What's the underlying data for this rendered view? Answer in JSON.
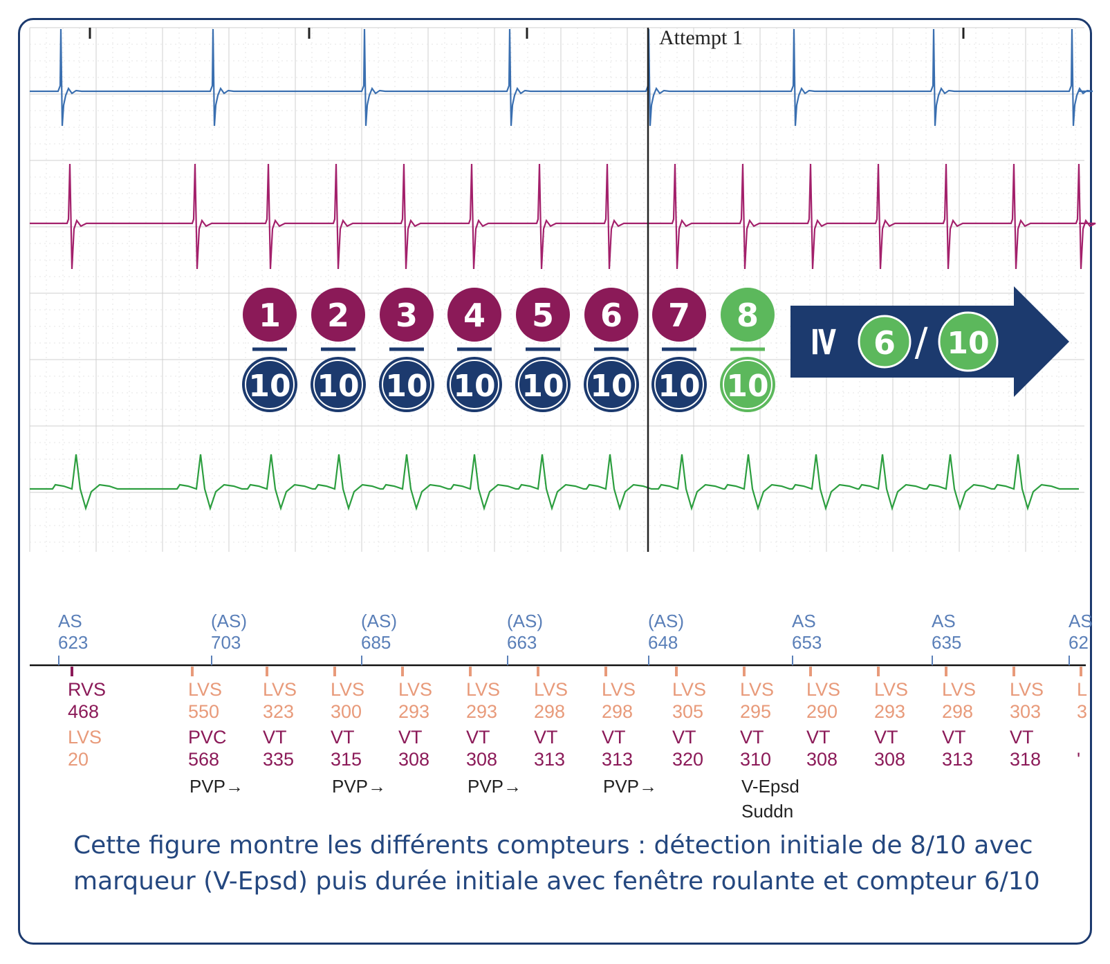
{
  "attempt_label": "Attempt 1",
  "counters": {
    "numerators": [
      "1",
      "2",
      "3",
      "4",
      "5",
      "6",
      "7",
      "8"
    ],
    "denominator": "10",
    "arrow_symbol": "≥",
    "arrow_numerator": "6",
    "arrow_separator": "/",
    "arrow_denominator": "10"
  },
  "atrial_markers": [
    {
      "label": "AS",
      "value": "623"
    },
    {
      "label": "(AS)",
      "value": "703"
    },
    {
      "label": "(AS)",
      "value": "685"
    },
    {
      "label": "(AS)",
      "value": "663"
    },
    {
      "label": "(AS)",
      "value": "648"
    },
    {
      "label": "AS",
      "value": "653"
    },
    {
      "label": "AS",
      "value": "635"
    },
    {
      "label": "AS",
      "value": "62"
    }
  ],
  "ventricular_markers": [
    {
      "l1": "RVS",
      "v1": "468",
      "l2": "LVS",
      "v2": "20",
      "extra": []
    },
    {
      "l1": "LVS",
      "v1": "550",
      "l2": "PVC",
      "v2": "568",
      "extra": [
        "PVP→"
      ]
    },
    {
      "l1": "LVS",
      "v1": "323",
      "l2": "VT",
      "v2": "335",
      "extra": []
    },
    {
      "l1": "LVS",
      "v1": "300",
      "l2": "VT",
      "v2": "315",
      "extra": [
        "PVP→"
      ]
    },
    {
      "l1": "LVS",
      "v1": "293",
      "l2": "VT",
      "v2": "308",
      "extra": []
    },
    {
      "l1": "LVS",
      "v1": "293",
      "l2": "VT",
      "v2": "308",
      "extra": [
        "PVP→"
      ]
    },
    {
      "l1": "LVS",
      "v1": "298",
      "l2": "VT",
      "v2": "313",
      "extra": []
    },
    {
      "l1": "LVS",
      "v1": "298",
      "l2": "VT",
      "v2": "313",
      "extra": [
        "PVP→"
      ]
    },
    {
      "l1": "LVS",
      "v1": "305",
      "l2": "VT",
      "v2": "320",
      "extra": []
    },
    {
      "l1": "LVS",
      "v1": "295",
      "l2": "VT",
      "v2": "310",
      "extra": [
        "V-Epsd",
        "Suddn"
      ]
    },
    {
      "l1": "LVS",
      "v1": "290",
      "l2": "VT",
      "v2": "308",
      "extra": []
    },
    {
      "l1": "LVS",
      "v1": "293",
      "l2": "VT",
      "v2": "308",
      "extra": []
    },
    {
      "l1": "LVS",
      "v1": "298",
      "l2": "VT",
      "v2": "313",
      "extra": []
    },
    {
      "l1": "LVS",
      "v1": "303",
      "l2": "VT",
      "v2": "318",
      "extra": []
    },
    {
      "l1": "L",
      "v1": "3",
      "l2": "",
      "v2": "'",
      "extra": []
    }
  ],
  "caption": "Cette figure montre les différents compteurs : détection initiale de 8/10 avec marqueur (V-Epsd) puis durée initiale avec fenêtre roulante et compteur 6/10",
  "colors": {
    "frame": "#1c3a6e",
    "trace_atrial": "#3a6fb0",
    "trace_rv": "#a3206b",
    "trace_ecg": "#2c9e3f",
    "counter_purple": "#8b1a58",
    "counter_navy": "#1c3a6e",
    "counter_green": "#5cb85c",
    "atrial_marker_text": "#5a7fb8",
    "marker_rvs": "#8b1a58",
    "marker_lvs": "#e89a7a",
    "marker_vt": "#8b1a58",
    "marker_extra": "#222222",
    "caption": "#24477f"
  }
}
